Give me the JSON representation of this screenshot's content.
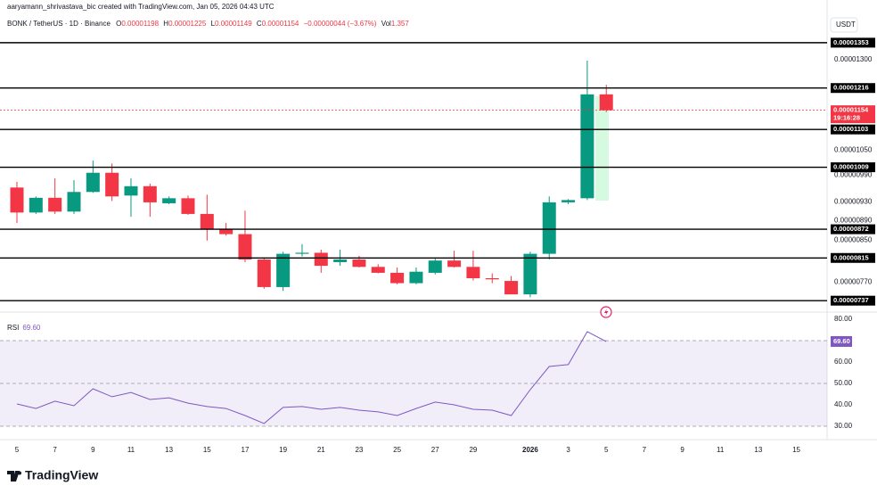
{
  "chart_data": [
    {
      "type": "candlestick",
      "header": {
        "author": "aaryamann_shrivastava_bic created with TradingView.com, Jan 05, 2026 04:43 UTC",
        "symbol": "BONK / TetherUS · 1D · Binance",
        "fields": [
          {
            "key": "O",
            "value": "0.00001198"
          },
          {
            "key": "H",
            "value": "0.00001225"
          },
          {
            "key": "L",
            "value": "0.00001149"
          },
          {
            "key": "C",
            "value": "0.00001154"
          }
        ],
        "change": "−0.00000044 (−3.67%)",
        "volume_key": "Vol",
        "volume": "1.357"
      },
      "axis_unit": "USDT",
      "categories": [
        "5",
        null,
        "7",
        null,
        "9",
        null,
        "11",
        null,
        "13",
        null,
        "15",
        null,
        "17",
        null,
        "19",
        null,
        "21",
        null,
        "23",
        null,
        "25",
        null,
        "27",
        null,
        "29",
        null,
        null,
        "2026",
        null,
        "3",
        null,
        "5",
        null,
        "7",
        null,
        "9",
        null,
        "11",
        null,
        "13",
        null,
        "15"
      ],
      "open": [
        9.62e-06,
        9.07e-06,
        9.39e-06,
        9.09e-06,
        9.52e-06,
        9.96e-06,
        9.44e-06,
        9.65e-06,
        9.27e-06,
        9.38e-06,
        9.04e-06,
        8.72e-06,
        8.62e-06,
        8.12e-06,
        7.61e-06,
        8.23e-06,
        8.25e-06,
        8.07e-06,
        8.12e-06,
        7.98e-06,
        7.87e-06,
        7.68e-06,
        7.87e-06,
        8.1e-06,
        7.98e-06,
        7.77e-06,
        7.72e-06,
        7.48e-06,
        8.23e-06,
        9.29e-06,
        9.38e-06,
        1.198e-05,
        null,
        null,
        null,
        null,
        null,
        null,
        null,
        null,
        null,
        null
      ],
      "high": [
        9.75e-06,
        9.42e-06,
        9.83e-06,
        9.79e-06,
        1.025e-05,
        1.018e-05,
        9.83e-06,
        9.71e-06,
        9.42e-06,
        9.44e-06,
        9.46e-06,
        8.85e-06,
        9.11e-06,
        8.16e-06,
        8.27e-06,
        8.42e-06,
        8.31e-06,
        8.31e-06,
        8.19e-06,
        8.03e-06,
        7.97e-06,
        7.97e-06,
        8.16e-06,
        8.29e-06,
        8.29e-06,
        7.86e-06,
        7.81e-06,
        8.27e-06,
        9.42e-06,
        9.36e-06,
        1.297e-05,
        1.225e-05,
        null,
        null,
        null,
        null,
        null,
        null,
        null,
        null,
        null,
        null
      ],
      "low": [
        8.85e-06,
        9.04e-06,
        9.04e-06,
        9.04e-06,
        9.5e-06,
        9.32e-06,
        8.98e-06,
        8.98e-06,
        9.25e-06,
        9.02e-06,
        8.49e-06,
        8.59e-06,
        8.07e-06,
        7.58e-06,
        7.54e-06,
        8.18e-06,
        7.87e-06,
        8e-06,
        7.97e-06,
        7.86e-06,
        7.66e-06,
        7.66e-06,
        7.84e-06,
        7.97e-06,
        7.73e-06,
        7.68e-06,
        7.48e-06,
        7.43e-06,
        8.12e-06,
        9.25e-06,
        9.34e-06,
        1.149e-05,
        null,
        null,
        null,
        null,
        null,
        null,
        null,
        null,
        null,
        null
      ],
      "close": [
        9.07e-06,
        9.39e-06,
        9.09e-06,
        9.52e-06,
        9.96e-06,
        9.42e-06,
        9.65e-06,
        9.29e-06,
        9.38e-06,
        9.04e-06,
        8.72e-06,
        8.62e-06,
        8.12e-06,
        7.61e-06,
        8.23e-06,
        8.25e-06,
        8e-06,
        8.12e-06,
        7.98e-06,
        7.87e-06,
        7.68e-06,
        7.89e-06,
        8.1e-06,
        7.98e-06,
        7.77e-06,
        7.75e-06,
        7.48e-06,
        8.23e-06,
        9.29e-06,
        9.34e-06,
        1.198e-05,
        1.154e-05,
        null,
        null,
        null,
        null,
        null,
        null,
        null,
        null,
        null,
        null
      ],
      "up_color": "#089981",
      "down_color": "#f23645",
      "log_scale": true,
      "ylim": [
        7.25e-06,
        1.465e-05
      ],
      "yticks": [
        {
          "value": 1.3e-05,
          "label": "0.00001300"
        },
        {
          "value": 1.05e-05,
          "label": "0.00001050"
        },
        {
          "value": 9.9e-06,
          "label": "0.00000990"
        },
        {
          "value": 9.3e-06,
          "label": "0.00000930"
        },
        {
          "value": 8.9e-06,
          "label": "0.00000890"
        },
        {
          "value": 8.5e-06,
          "label": "0.00000850"
        },
        {
          "value": 7.7e-06,
          "label": "0.00000770"
        }
      ],
      "levels": [
        {
          "value": 1.353e-05,
          "label": "0.00001353"
        },
        {
          "value": 1.216e-05,
          "label": "0.00001216"
        },
        {
          "value": 1.103e-05,
          "label": "0.00001103"
        },
        {
          "value": 1.009e-05,
          "label": "0.00001009"
        },
        {
          "value": 8.72e-06,
          "label": "0.00000872"
        },
        {
          "value": 8.15e-06,
          "label": "0.00000815"
        },
        {
          "value": 7.37e-06,
          "label": "0.00000737"
        }
      ],
      "level_color": "#000000",
      "last_price": {
        "value": 1.154e-05,
        "label": "0.00001154"
      },
      "countdown": "19:16:28"
    },
    {
      "type": "line",
      "name": "RSI",
      "color": "#7e57c2",
      "values": [
        40.4,
        38.3,
        41.7,
        39.6,
        47.5,
        43.8,
        45.8,
        42.5,
        43.3,
        40.8,
        39.2,
        38.3,
        35.0,
        31.3,
        38.8,
        39.2,
        37.9,
        38.8,
        37.5,
        36.7,
        35.0,
        38.3,
        41.3,
        40.0,
        37.9,
        37.5,
        35.0,
        47.1,
        57.9,
        58.8,
        74.2,
        69.6,
        null,
        null,
        null,
        null,
        null,
        null,
        null,
        null,
        null,
        null
      ],
      "value_labels": [
        null,
        null,
        null,
        null,
        null,
        null,
        null,
        null,
        null,
        null,
        null,
        null,
        null,
        null,
        null,
        null,
        null,
        null,
        null,
        null,
        null,
        null,
        null,
        null,
        null,
        null,
        null,
        null,
        null,
        null,
        null,
        "69.60",
        null,
        null,
        null,
        null,
        null,
        null,
        null,
        null,
        null,
        null
      ],
      "ylim": [
        25,
        81.25
      ],
      "yticks": [
        {
          "value": 80,
          "label": "80.00"
        },
        {
          "value": 60,
          "label": "60.00"
        },
        {
          "value": 50,
          "label": "50.00"
        },
        {
          "value": 40,
          "label": "40.00"
        },
        {
          "value": 30,
          "label": "30.00"
        }
      ],
      "dashed_levels": [
        70,
        50,
        30
      ]
    },
    {
      "type": "logo",
      "text": "TradingView"
    }
  ]
}
